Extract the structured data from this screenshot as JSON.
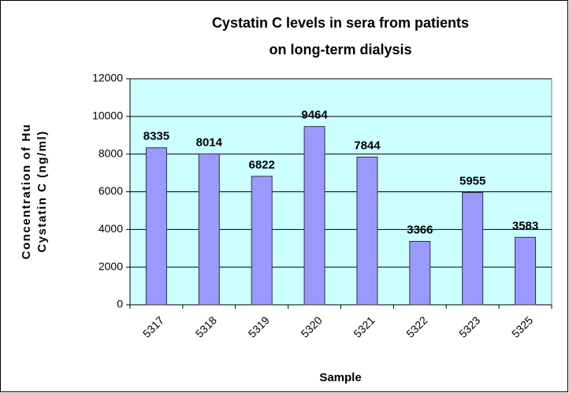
{
  "chart_data": {
    "type": "bar",
    "title": [
      "Cystatin C  levels in sera from patients",
      "on long-term dialysis"
    ],
    "y_label": [
      "Concentration of Hu",
      "Cystatin C (ng/ml)"
    ],
    "x_label": "Sample",
    "categories": [
      "5317",
      "5318",
      "5319",
      "5320",
      "5321",
      "5322",
      "5323",
      "5325"
    ],
    "values": [
      8335,
      8014,
      6822,
      9464,
      7844,
      3366,
      5955,
      3583
    ],
    "color": "#9999ff",
    "plot_background": "#ccffff",
    "ylim": [
      0,
      12000
    ],
    "yticks": [
      0,
      2000,
      4000,
      6000,
      8000,
      10000,
      12000
    ],
    "grid": true
  }
}
